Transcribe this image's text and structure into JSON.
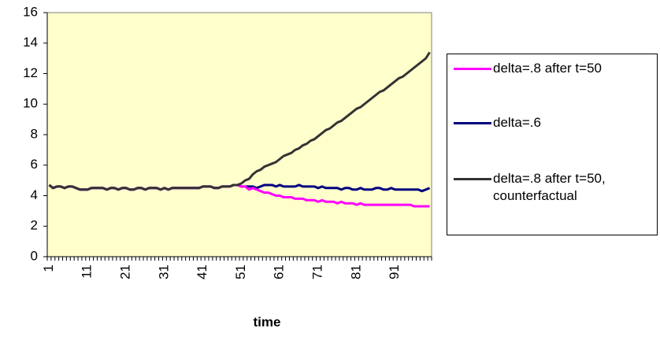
{
  "chart_data": {
    "type": "line",
    "xlabel": "time",
    "categories": [
      1,
      null,
      null,
      null,
      null,
      null,
      null,
      null,
      null,
      null,
      11,
      null,
      null,
      null,
      null,
      null,
      null,
      null,
      null,
      null,
      21,
      null,
      null,
      null,
      null,
      null,
      null,
      null,
      null,
      null,
      31,
      null,
      null,
      null,
      null,
      null,
      null,
      null,
      null,
      null,
      41,
      null,
      null,
      null,
      null,
      null,
      null,
      null,
      null,
      null,
      51,
      null,
      null,
      null,
      null,
      null,
      null,
      null,
      null,
      null,
      61,
      null,
      null,
      null,
      null,
      null,
      null,
      null,
      null,
      null,
      71,
      null,
      null,
      null,
      null,
      null,
      null,
      null,
      null,
      null,
      81,
      null,
      null,
      null,
      null,
      null,
      null,
      null,
      null,
      null,
      91,
      null,
      null,
      null,
      null,
      null,
      null,
      null,
      null,
      null
    ],
    "ylim": [
      0,
      16
    ],
    "yticks": [
      0,
      2,
      4,
      6,
      8,
      10,
      12,
      14,
      16
    ],
    "grid": false,
    "plot_background": "#ffffcc",
    "series": [
      {
        "name": "delta=.8 after t=50",
        "color": "#ff00ff",
        "values": [
          4.7,
          4.5,
          4.6,
          4.6,
          4.5,
          4.6,
          4.6,
          4.5,
          4.4,
          4.4,
          4.4,
          4.5,
          4.5,
          4.5,
          4.5,
          4.4,
          4.5,
          4.5,
          4.4,
          4.5,
          4.5,
          4.4,
          4.4,
          4.5,
          4.5,
          4.4,
          4.5,
          4.5,
          4.5,
          4.4,
          4.5,
          4.4,
          4.5,
          4.5,
          4.5,
          4.5,
          4.5,
          4.5,
          4.5,
          4.5,
          4.6,
          4.6,
          4.6,
          4.5,
          4.5,
          4.6,
          4.6,
          4.6,
          4.7,
          4.7,
          4.6,
          4.6,
          4.4,
          4.5,
          4.4,
          4.3,
          4.2,
          4.2,
          4.1,
          4.0,
          4.0,
          3.9,
          3.9,
          3.9,
          3.8,
          3.8,
          3.8,
          3.7,
          3.7,
          3.7,
          3.6,
          3.7,
          3.6,
          3.6,
          3.6,
          3.5,
          3.6,
          3.5,
          3.5,
          3.5,
          3.4,
          3.5,
          3.4,
          3.4,
          3.4,
          3.4,
          3.4,
          3.4,
          3.4,
          3.4,
          3.4,
          3.4,
          3.4,
          3.4,
          3.4,
          3.3,
          3.3,
          3.3,
          3.3,
          3.3
        ]
      },
      {
        "name": "delta=.6",
        "color": "#000080",
        "values": [
          4.7,
          4.5,
          4.6,
          4.6,
          4.5,
          4.6,
          4.6,
          4.5,
          4.4,
          4.4,
          4.4,
          4.5,
          4.5,
          4.5,
          4.5,
          4.4,
          4.5,
          4.5,
          4.4,
          4.5,
          4.5,
          4.4,
          4.4,
          4.5,
          4.5,
          4.4,
          4.5,
          4.5,
          4.5,
          4.4,
          4.5,
          4.4,
          4.5,
          4.5,
          4.5,
          4.5,
          4.5,
          4.5,
          4.5,
          4.5,
          4.6,
          4.6,
          4.6,
          4.5,
          4.5,
          4.6,
          4.6,
          4.6,
          4.7,
          4.7,
          4.6,
          4.6,
          4.6,
          4.6,
          4.5,
          4.6,
          4.7,
          4.7,
          4.7,
          4.6,
          4.7,
          4.6,
          4.6,
          4.6,
          4.6,
          4.7,
          4.6,
          4.6,
          4.6,
          4.6,
          4.5,
          4.6,
          4.5,
          4.5,
          4.5,
          4.5,
          4.4,
          4.5,
          4.5,
          4.4,
          4.4,
          4.5,
          4.4,
          4.4,
          4.4,
          4.5,
          4.5,
          4.4,
          4.4,
          4.5,
          4.4,
          4.4,
          4.4,
          4.4,
          4.4,
          4.4,
          4.4,
          4.3,
          4.4,
          4.5
        ]
      },
      {
        "name": "delta=.8 after t=50, counterfactual",
        "color": "#333333",
        "values": [
          4.7,
          4.5,
          4.6,
          4.6,
          4.5,
          4.6,
          4.6,
          4.5,
          4.4,
          4.4,
          4.4,
          4.5,
          4.5,
          4.5,
          4.5,
          4.4,
          4.5,
          4.5,
          4.4,
          4.5,
          4.5,
          4.4,
          4.4,
          4.5,
          4.5,
          4.4,
          4.5,
          4.5,
          4.5,
          4.4,
          4.5,
          4.4,
          4.5,
          4.5,
          4.5,
          4.5,
          4.5,
          4.5,
          4.5,
          4.5,
          4.6,
          4.6,
          4.6,
          4.5,
          4.5,
          4.6,
          4.6,
          4.6,
          4.7,
          4.7,
          4.8,
          5.0,
          5.1,
          5.4,
          5.6,
          5.7,
          5.9,
          6.0,
          6.1,
          6.2,
          6.4,
          6.6,
          6.7,
          6.8,
          7.0,
          7.1,
          7.3,
          7.4,
          7.6,
          7.7,
          7.9,
          8.1,
          8.3,
          8.4,
          8.6,
          8.8,
          8.9,
          9.1,
          9.3,
          9.5,
          9.7,
          9.8,
          10.0,
          10.2,
          10.4,
          10.6,
          10.8,
          10.9,
          11.1,
          11.3,
          11.5,
          11.7,
          11.8,
          12.0,
          12.2,
          12.4,
          12.6,
          12.8,
          13.0,
          13.4
        ]
      }
    ]
  }
}
